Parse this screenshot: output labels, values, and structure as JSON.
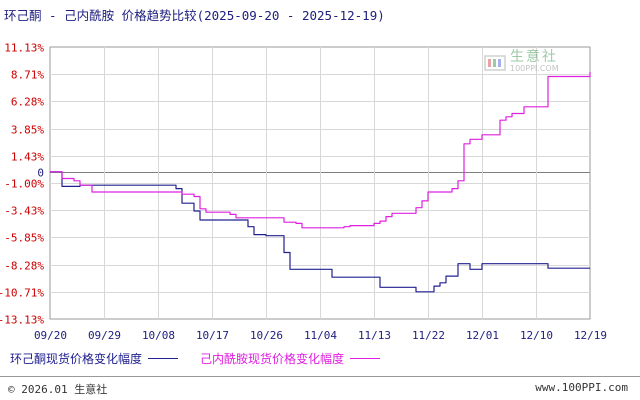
{
  "title": "环己酮 - 己内酰胺 价格趋势比较(2025-09-20 - 2025-12-19)",
  "watermark": {
    "cn": "生意社",
    "en": "100PPI.COM",
    "logo": "100ppi-logo-icon"
  },
  "footer": {
    "copyright": "© 2026.01 生意社",
    "url": "www.100PPI.com"
  },
  "colors": {
    "series1": "#202090",
    "series2": "#e020e0",
    "axis_pos": "#cc0000",
    "axis_neg": "#cc0000",
    "zero": "#202080"
  },
  "chart_data": {
    "type": "line",
    "xlabel": "",
    "ylabel": "",
    "x_ticks": [
      "09/20",
      "09/29",
      "10/08",
      "10/17",
      "10/26",
      "11/04",
      "11/13",
      "11/22",
      "12/01",
      "12/10",
      "12/19"
    ],
    "y_ticks": [
      "11.13%",
      "8.71%",
      "6.28%",
      "3.85%",
      "1.43%",
      "0",
      "-1.00%",
      "-3.43%",
      "-5.85%",
      "-8.28%",
      "-10.71%",
      "-13.13%"
    ],
    "ylim": [
      -13.13,
      11.13
    ],
    "grid": true,
    "legend_position": "bottom",
    "series": [
      {
        "name": "环己酮现货价格变化幅度",
        "points": [
          [
            "09/20",
            0
          ],
          [
            "09/21",
            0
          ],
          [
            "09/22",
            -1.3
          ],
          [
            "09/23",
            -1.3
          ],
          [
            "09/24",
            -1.3
          ],
          [
            "09/25",
            -1.2
          ],
          [
            "09/26",
            -1.2
          ],
          [
            "09/27",
            -1.2
          ],
          [
            "09/28",
            -1.2
          ],
          [
            "09/29",
            -1.2
          ],
          [
            "09/30",
            -1.2
          ],
          [
            "10/01",
            -1.2
          ],
          [
            "10/02",
            -1.2
          ],
          [
            "10/03",
            -1.2
          ],
          [
            "10/04",
            -1.2
          ],
          [
            "10/05",
            -1.2
          ],
          [
            "10/06",
            -1.2
          ],
          [
            "10/07",
            -1.2
          ],
          [
            "10/08",
            -1.2
          ],
          [
            "10/09",
            -1.2
          ],
          [
            "10/10",
            -1.2
          ],
          [
            "10/11",
            -1.5
          ],
          [
            "10/12",
            -2.8
          ],
          [
            "10/13",
            -2.8
          ],
          [
            "10/14",
            -3.5
          ],
          [
            "10/15",
            -4.3
          ],
          [
            "10/16",
            -4.3
          ],
          [
            "10/17",
            -4.3
          ],
          [
            "10/18",
            -4.3
          ],
          [
            "10/19",
            -4.3
          ],
          [
            "10/20",
            -4.3
          ],
          [
            "10/21",
            -4.3
          ],
          [
            "10/22",
            -4.3
          ],
          [
            "10/23",
            -4.9
          ],
          [
            "10/24",
            -5.6
          ],
          [
            "10/25",
            -5.6
          ],
          [
            "10/26",
            -5.7
          ],
          [
            "10/27",
            -5.7
          ],
          [
            "10/28",
            -5.7
          ],
          [
            "10/29",
            -7.2
          ],
          [
            "10/30",
            -8.7
          ],
          [
            "10/31",
            -8.7
          ],
          [
            "11/01",
            -8.7
          ],
          [
            "11/02",
            -8.7
          ],
          [
            "11/03",
            -8.7
          ],
          [
            "11/04",
            -8.7
          ],
          [
            "11/05",
            -8.7
          ],
          [
            "11/06",
            -9.4
          ],
          [
            "11/07",
            -9.4
          ],
          [
            "11/08",
            -9.4
          ],
          [
            "11/09",
            -9.4
          ],
          [
            "11/10",
            -9.4
          ],
          [
            "11/11",
            -9.4
          ],
          [
            "11/12",
            -9.4
          ],
          [
            "11/13",
            -9.4
          ],
          [
            "11/14",
            -10.3
          ],
          [
            "11/15",
            -10.3
          ],
          [
            "11/16",
            -10.3
          ],
          [
            "11/17",
            -10.3
          ],
          [
            "11/18",
            -10.3
          ],
          [
            "11/19",
            -10.3
          ],
          [
            "11/20",
            -10.7
          ],
          [
            "11/21",
            -10.7
          ],
          [
            "11/22",
            -10.7
          ],
          [
            "11/23",
            -10.2
          ],
          [
            "11/24",
            -9.9
          ],
          [
            "11/25",
            -9.3
          ],
          [
            "11/26",
            -9.3
          ],
          [
            "11/27",
            -8.2
          ],
          [
            "11/28",
            -8.2
          ],
          [
            "11/29",
            -8.7
          ],
          [
            "11/30",
            -8.7
          ],
          [
            "12/01",
            -8.2
          ],
          [
            "12/02",
            -8.2
          ],
          [
            "12/03",
            -8.2
          ],
          [
            "12/04",
            -8.2
          ],
          [
            "12/05",
            -8.2
          ],
          [
            "12/06",
            -8.2
          ],
          [
            "12/07",
            -8.2
          ],
          [
            "12/08",
            -8.2
          ],
          [
            "12/09",
            -8.2
          ],
          [
            "12/10",
            -8.2
          ],
          [
            "12/11",
            -8.2
          ],
          [
            "12/12",
            -8.6
          ],
          [
            "12/13",
            -8.6
          ],
          [
            "12/14",
            -8.6
          ],
          [
            "12/15",
            -8.6
          ],
          [
            "12/16",
            -8.6
          ],
          [
            "12/17",
            -8.6
          ],
          [
            "12/18",
            -8.6
          ],
          [
            "12/19",
            -8.6
          ]
        ]
      },
      {
        "name": "己内酰胺现货价格变化幅度",
        "points": [
          [
            "09/20",
            0
          ],
          [
            "09/21",
            0
          ],
          [
            "09/22",
            -0.6
          ],
          [
            "09/23",
            -0.6
          ],
          [
            "09/24",
            -0.8
          ],
          [
            "09/25",
            -1.2
          ],
          [
            "09/26",
            -1.2
          ],
          [
            "09/27",
            -1.8
          ],
          [
            "09/28",
            -1.8
          ],
          [
            "09/29",
            -1.8
          ],
          [
            "09/30",
            -1.8
          ],
          [
            "10/01",
            -1.8
          ],
          [
            "10/02",
            -1.8
          ],
          [
            "10/03",
            -1.8
          ],
          [
            "10/04",
            -1.8
          ],
          [
            "10/05",
            -1.8
          ],
          [
            "10/06",
            -1.8
          ],
          [
            "10/07",
            -1.8
          ],
          [
            "10/08",
            -1.8
          ],
          [
            "10/09",
            -1.8
          ],
          [
            "10/10",
            -1.8
          ],
          [
            "10/11",
            -1.8
          ],
          [
            "10/12",
            -2.0
          ],
          [
            "10/13",
            -2.0
          ],
          [
            "10/14",
            -2.2
          ],
          [
            "10/15",
            -3.3
          ],
          [
            "10/16",
            -3.6
          ],
          [
            "10/17",
            -3.6
          ],
          [
            "10/18",
            -3.6
          ],
          [
            "10/19",
            -3.6
          ],
          [
            "10/20",
            -3.8
          ],
          [
            "10/21",
            -4.1
          ],
          [
            "10/22",
            -4.1
          ],
          [
            "10/23",
            -4.1
          ],
          [
            "10/24",
            -4.1
          ],
          [
            "10/25",
            -4.1
          ],
          [
            "10/26",
            -4.1
          ],
          [
            "10/27",
            -4.1
          ],
          [
            "10/28",
            -4.1
          ],
          [
            "10/29",
            -4.5
          ],
          [
            "10/30",
            -4.5
          ],
          [
            "10/31",
            -4.6
          ],
          [
            "11/01",
            -5.0
          ],
          [
            "11/02",
            -5.0
          ],
          [
            "11/03",
            -5.0
          ],
          [
            "11/04",
            -5.0
          ],
          [
            "11/05",
            -5.0
          ],
          [
            "11/06",
            -5.0
          ],
          [
            "11/07",
            -5.0
          ],
          [
            "11/08",
            -4.9
          ],
          [
            "11/09",
            -4.8
          ],
          [
            "11/10",
            -4.8
          ],
          [
            "11/11",
            -4.8
          ],
          [
            "11/12",
            -4.8
          ],
          [
            "11/13",
            -4.6
          ],
          [
            "11/14",
            -4.4
          ],
          [
            "11/15",
            -4.0
          ],
          [
            "11/16",
            -3.7
          ],
          [
            "11/17",
            -3.7
          ],
          [
            "11/18",
            -3.7
          ],
          [
            "11/19",
            -3.7
          ],
          [
            "11/20",
            -3.2
          ],
          [
            "11/21",
            -2.6
          ],
          [
            "11/22",
            -1.8
          ],
          [
            "11/23",
            -1.8
          ],
          [
            "11/24",
            -1.8
          ],
          [
            "11/25",
            -1.8
          ],
          [
            "11/26",
            -1.5
          ],
          [
            "11/27",
            -0.8
          ],
          [
            "11/28",
            2.5
          ],
          [
            "11/29",
            2.9
          ],
          [
            "11/30",
            2.9
          ],
          [
            "12/01",
            3.3
          ],
          [
            "12/02",
            3.3
          ],
          [
            "12/03",
            3.3
          ],
          [
            "12/04",
            4.6
          ],
          [
            "12/05",
            4.9
          ],
          [
            "12/06",
            5.2
          ],
          [
            "12/07",
            5.2
          ],
          [
            "12/08",
            5.8
          ],
          [
            "12/09",
            5.8
          ],
          [
            "12/10",
            5.8
          ],
          [
            "12/11",
            5.8
          ],
          [
            "12/12",
            8.5
          ],
          [
            "12/13",
            8.5
          ],
          [
            "12/14",
            8.5
          ],
          [
            "12/15",
            8.5
          ],
          [
            "12/16",
            8.5
          ],
          [
            "12/17",
            8.5
          ],
          [
            "12/18",
            8.5
          ],
          [
            "12/19",
            8.9
          ]
        ]
      }
    ]
  }
}
